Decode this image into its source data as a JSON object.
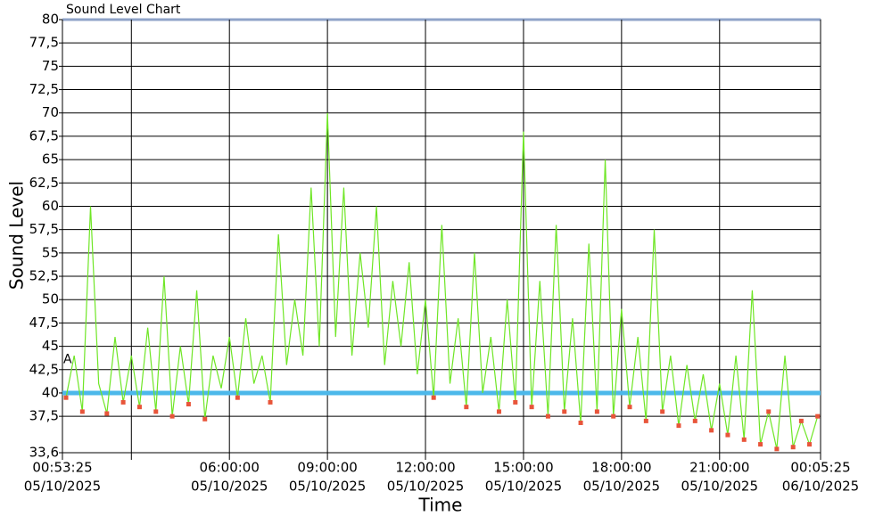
{
  "chart_data": {
    "type": "line",
    "title": "Sound Level Chart",
    "x_label": "Time",
    "y_label": "Sound Level",
    "annotation": "A",
    "x": [
      "05/10/2025 01:00:00",
      "05/10/2025 01:15:00",
      "05/10/2025 01:30:00",
      "05/10/2025 01:45:00",
      "05/10/2025 02:00:00",
      "05/10/2025 02:15:00",
      "05/10/2025 02:30:00",
      "05/10/2025 02:45:00",
      "05/10/2025 03:00:00",
      "05/10/2025 03:15:00",
      "05/10/2025 03:30:00",
      "05/10/2025 03:45:00",
      "05/10/2025 04:00:00",
      "05/10/2025 04:15:00",
      "05/10/2025 04:30:00",
      "05/10/2025 04:45:00",
      "05/10/2025 05:00:00",
      "05/10/2025 05:15:00",
      "05/10/2025 05:30:00",
      "05/10/2025 05:45:00",
      "05/10/2025 06:00:00",
      "05/10/2025 06:15:00",
      "05/10/2025 06:30:00",
      "05/10/2025 06:45:00",
      "05/10/2025 07:00:00",
      "05/10/2025 07:15:00",
      "05/10/2025 07:30:00",
      "05/10/2025 07:45:00",
      "05/10/2025 08:00:00",
      "05/10/2025 08:15:00",
      "05/10/2025 08:30:00",
      "05/10/2025 08:45:00",
      "05/10/2025 09:00:00",
      "05/10/2025 09:15:00",
      "05/10/2025 09:30:00",
      "05/10/2025 09:45:00",
      "05/10/2025 10:00:00",
      "05/10/2025 10:15:00",
      "05/10/2025 10:30:00",
      "05/10/2025 10:45:00",
      "05/10/2025 11:00:00",
      "05/10/2025 11:15:00",
      "05/10/2025 11:30:00",
      "05/10/2025 11:45:00",
      "05/10/2025 12:00:00",
      "05/10/2025 12:15:00",
      "05/10/2025 12:30:00",
      "05/10/2025 12:45:00",
      "05/10/2025 13:00:00",
      "05/10/2025 13:15:00",
      "05/10/2025 13:30:00",
      "05/10/2025 13:45:00",
      "05/10/2025 14:00:00",
      "05/10/2025 14:15:00",
      "05/10/2025 14:30:00",
      "05/10/2025 14:45:00",
      "05/10/2025 15:00:00",
      "05/10/2025 15:15:00",
      "05/10/2025 15:30:00",
      "05/10/2025 15:45:00",
      "05/10/2025 16:00:00",
      "05/10/2025 16:15:00",
      "05/10/2025 16:30:00",
      "05/10/2025 16:45:00",
      "05/10/2025 17:00:00",
      "05/10/2025 17:15:00",
      "05/10/2025 17:30:00",
      "05/10/2025 17:45:00",
      "05/10/2025 18:00:00",
      "05/10/2025 18:15:00",
      "05/10/2025 18:30:00",
      "05/10/2025 18:45:00",
      "05/10/2025 19:00:00",
      "05/10/2025 19:15:00",
      "05/10/2025 19:30:00",
      "05/10/2025 19:45:00",
      "05/10/2025 20:00:00",
      "05/10/2025 20:15:00",
      "05/10/2025 20:30:00",
      "05/10/2025 20:45:00",
      "05/10/2025 21:00:00",
      "05/10/2025 21:15:00",
      "05/10/2025 21:30:00",
      "05/10/2025 21:45:00",
      "05/10/2025 22:00:00",
      "05/10/2025 22:15:00",
      "05/10/2025 22:30:00",
      "05/10/2025 22:45:00",
      "05/10/2025 23:00:00",
      "05/10/2025 23:15:00",
      "05/10/2025 23:30:00",
      "05/10/2025 23:45:00",
      "06/10/2025 00:00:00"
    ],
    "series": [
      {
        "color": "#6fe626",
        "marker_color": "#e8553a",
        "values": [
          39.5,
          44,
          38,
          60,
          41,
          37.8,
          46,
          39,
          44,
          38.5,
          47,
          38,
          52.5,
          37.5,
          45,
          38.8,
          51,
          37.2,
          44,
          40.5,
          46,
          39.5,
          48,
          41,
          44,
          39,
          57,
          43,
          50,
          44,
          62,
          45,
          70,
          46,
          62,
          44,
          55,
          47,
          60,
          43,
          52,
          45,
          54,
          42,
          50,
          39.5,
          58,
          41,
          48,
          38.5,
          55,
          40,
          46,
          38,
          50,
          39,
          68,
          38.5,
          52,
          37.5,
          58,
          38,
          48,
          36.8,
          56,
          38,
          65,
          37.5,
          49,
          38.5,
          46,
          37,
          57.5,
          38,
          44,
          36.5,
          43,
          37,
          42,
          36,
          41,
          35.5,
          44,
          35,
          51,
          34.5,
          38,
          34,
          44,
          34.2,
          37,
          34.5,
          37.5
        ]
      }
    ],
    "threshold": 40,
    "threshold_color": "#4cb8ea",
    "xlim": [
      "05/10/2025 00:53:25",
      "06/10/2025 00:05:25"
    ],
    "xticks": [
      {
        "value": "05/10/2025 00:53:25",
        "label": [
          "00:53:25",
          "05/10/2025"
        ]
      },
      {
        "value": "05/10/2025 03:00:00",
        "label": null
      },
      {
        "value": "05/10/2025 06:00:00",
        "label": [
          "06:00:00",
          "05/10/2025"
        ]
      },
      {
        "value": "05/10/2025 09:00:00",
        "label": [
          "09:00:00",
          "05/10/2025"
        ]
      },
      {
        "value": "05/10/2025 12:00:00",
        "label": [
          "12:00:00",
          "05/10/2025"
        ]
      },
      {
        "value": "05/10/2025 15:00:00",
        "label": [
          "15:00:00",
          "05/10/2025"
        ]
      },
      {
        "value": "05/10/2025 18:00:00",
        "label": [
          "18:00:00",
          "05/10/2025"
        ]
      },
      {
        "value": "05/10/2025 21:00:00",
        "label": [
          "21:00:00",
          "05/10/2025"
        ]
      },
      {
        "value": "06/10/2025 00:05:25",
        "label": [
          "00:05:25",
          "06/10/2025"
        ]
      }
    ],
    "ylim": [
      33.6,
      80
    ],
    "yticks": [
      {
        "value": 33.6,
        "label": "33,6"
      },
      {
        "value": 37.5,
        "label": "37,5"
      },
      40,
      {
        "value": 42.5,
        "label": "42,5"
      },
      45,
      {
        "value": 47.5,
        "label": "47,5"
      },
      50,
      {
        "value": 52.5,
        "label": "52,5"
      },
      55,
      {
        "value": 57.5,
        "label": "57,5"
      },
      60,
      {
        "value": 62.5,
        "label": "62,5"
      },
      65,
      {
        "value": 67.5,
        "label": "67,5"
      },
      70,
      {
        "value": 72.5,
        "label": "72,5"
      },
      75,
      {
        "value": 77.5,
        "label": "77,5"
      },
      80
    ],
    "grid": true
  }
}
